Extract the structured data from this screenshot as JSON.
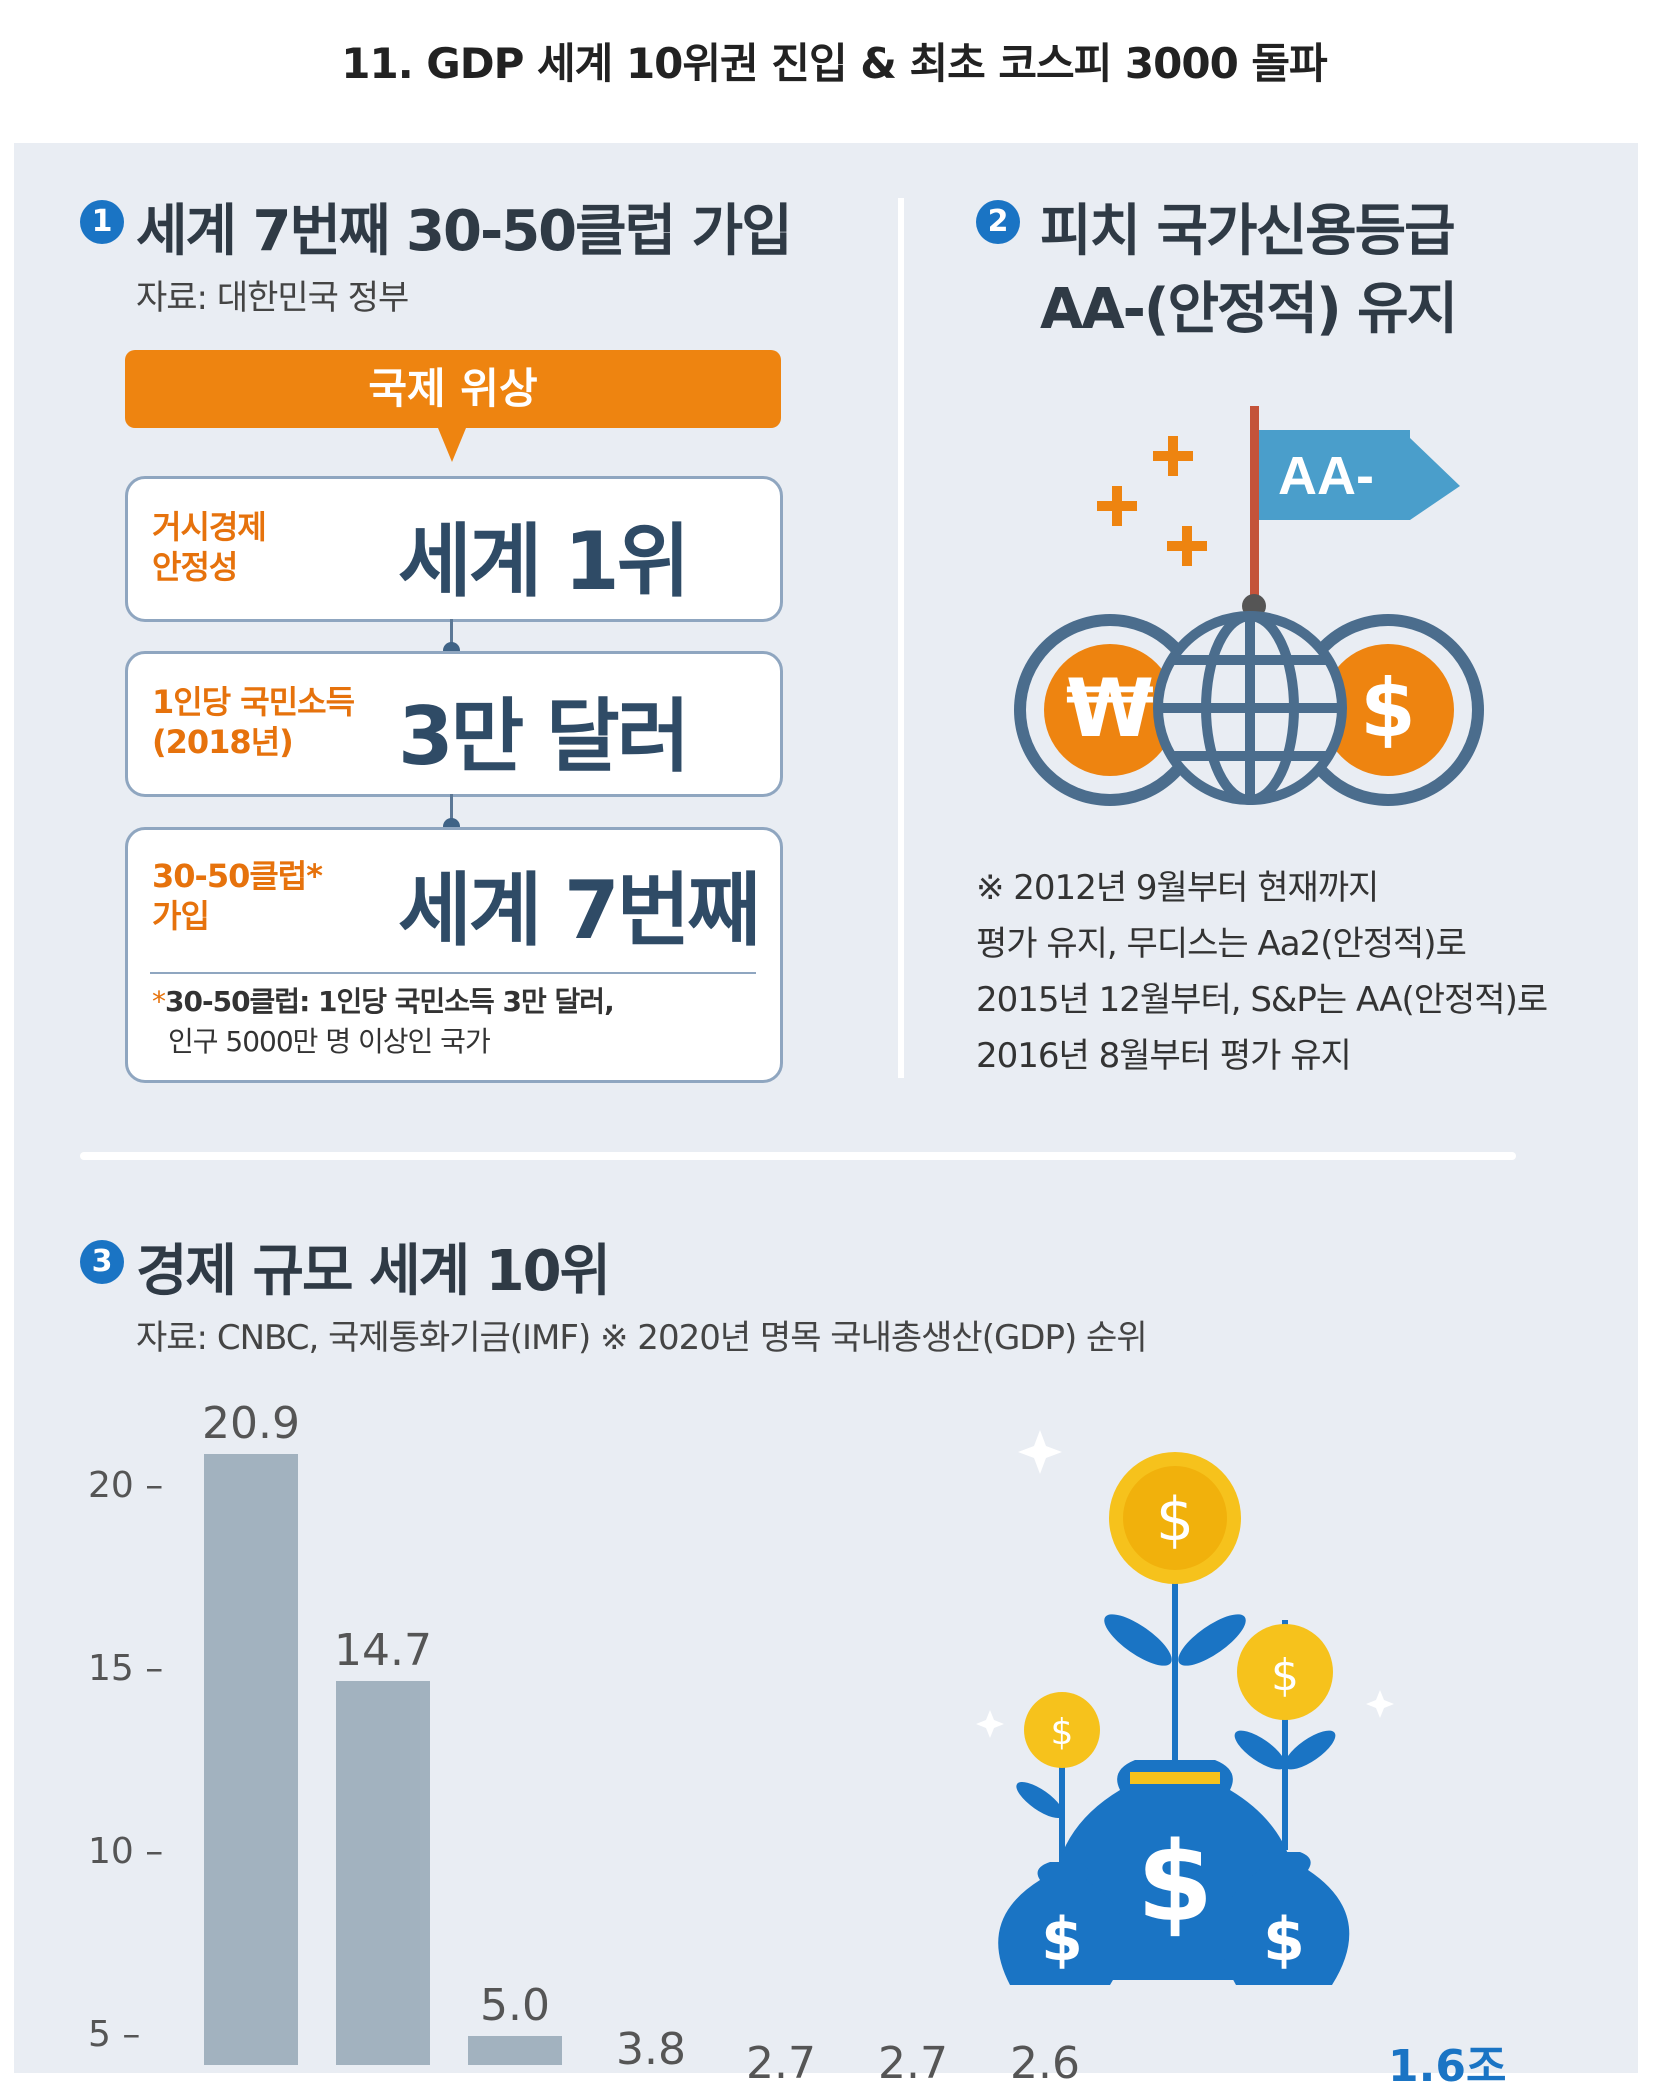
{
  "page_title": "11. GDP 세계 10위권 진입 & 최초 코스피 3000 돌파",
  "section1": {
    "num": "1",
    "title": "세계 7번째 30-50클럽 가입",
    "source": "자료: 대한민국 정부",
    "banner": "국제 위상",
    "boxes": [
      {
        "label_l1": "거시경제",
        "label_l2": "안정성",
        "value": "세계 1위"
      },
      {
        "label_l1": "1인당 국민소득",
        "label_l2": "(2018년)",
        "value": "3만 달러"
      },
      {
        "label_l1": "30-50클럽*",
        "label_l2": "가입",
        "value": "세계 7번째"
      }
    ],
    "footnote_l1": "30-50클럽: 1인당 국민소득 3만 달러,",
    "footnote_l2": "인구 5000만 명 이상인 국가"
  },
  "section2": {
    "num": "2",
    "title_l1": "피치 국가신용등급",
    "title_l2": "AA-(안정적) 유지",
    "flag_text": "AA-",
    "won_symbol": "₩",
    "dollar_symbol": "$",
    "note_l1": "※ 2012년 9월부터 현재까지",
    "note_l2": "평가 유지, 무디스는 Aa2(안정적)로",
    "note_l3": "2015년 12월부터, S&P는 AA(안정적)로",
    "note_l4": "2016년 8월부터 평가 유지"
  },
  "section3": {
    "num": "3",
    "title": "경제 규모 세계 10위",
    "source": "자료: CNBC, 국제통화기금(IMF) ※ 2020년 명목 국내총생산(GDP) 순위",
    "partial_label_a": "2.7",
    "partial_label_b": "2.7",
    "partial_label_c": "2.6",
    "partial_label_blue": "1.6조",
    "coin_symbol": "$"
  },
  "chart_data": {
    "type": "bar",
    "title": "경제 규모 세계 10위",
    "yticks": [
      5,
      10,
      15,
      20
    ],
    "ylim": [
      0,
      22
    ],
    "values": [
      20.9,
      14.7,
      5.0,
      3.8
    ],
    "value_labels": [
      "20.9",
      "14.7",
      "5.0",
      "3.8"
    ],
    "bar_color": "#a2b2bf"
  },
  "colors": {
    "accent_orange": "#ee8410",
    "accent_blue": "#1a74c4",
    "panel_bg": "#e9edf3",
    "box_border": "#8fa6c0",
    "dark_text": "#2f4b66"
  }
}
